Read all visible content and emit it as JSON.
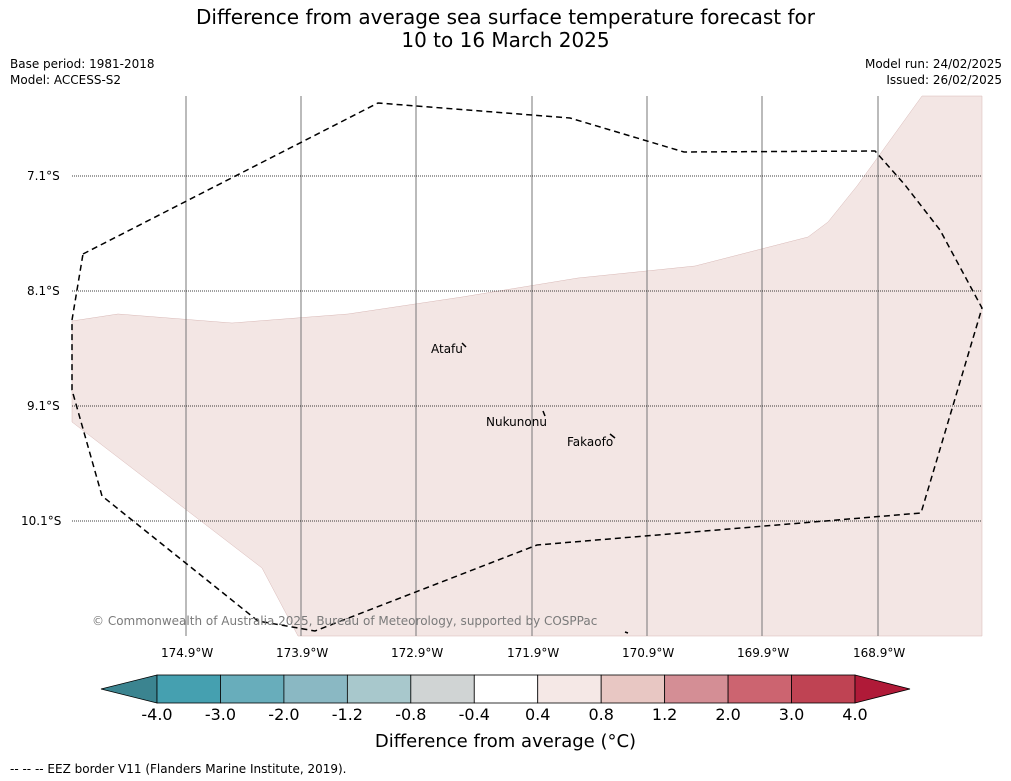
{
  "title_line1": "Difference from average sea surface temperature forecast for",
  "title_line2": "10 to 16 March 2025",
  "base_period": "Base period: 1981-2018",
  "model": "Model: ACCESS-S2",
  "model_run": "Model run: 24/02/2025",
  "issued": "Issued: 26/02/2025",
  "lat_labels": [
    "7.1°S",
    "8.1°S",
    "9.1°S",
    "10.1°S"
  ],
  "lon_labels": [
    "174.9°W",
    "173.9°W",
    "172.9°W",
    "171.9°W",
    "170.9°W",
    "169.9°W",
    "168.9°W"
  ],
  "places": {
    "atafu": "Atafu",
    "nukunonu": "Nukunonu",
    "fakaofo": "Fakaofo"
  },
  "copyright": "© Commonwealth of Australia 2025, Bureau of Meteorology, supported by COSPPac",
  "colorbar": {
    "title": "Difference from average (°C)",
    "labels": [
      "-4.0",
      "-3.0",
      "-2.0",
      "-1.2",
      "-0.8",
      "-0.4",
      "0.4",
      "0.8",
      "1.2",
      "2.0",
      "3.0",
      "4.0"
    ],
    "colors": [
      "#45a0b0",
      "#68adbb",
      "#8ab8c3",
      "#a8c8cc",
      "#d0d4d4",
      "#ffffff",
      "#f5e8e6",
      "#e8c7c3",
      "#d48e95",
      "#cc6470",
      "#bf4353"
    ],
    "under_color": "#3b8490",
    "over_color": "#b01a38"
  },
  "forecast_fill_color": "#f3e6e4",
  "legend_note": "--  --  -- EEZ border V11 (Flanders Marine Institute, 2019)."
}
